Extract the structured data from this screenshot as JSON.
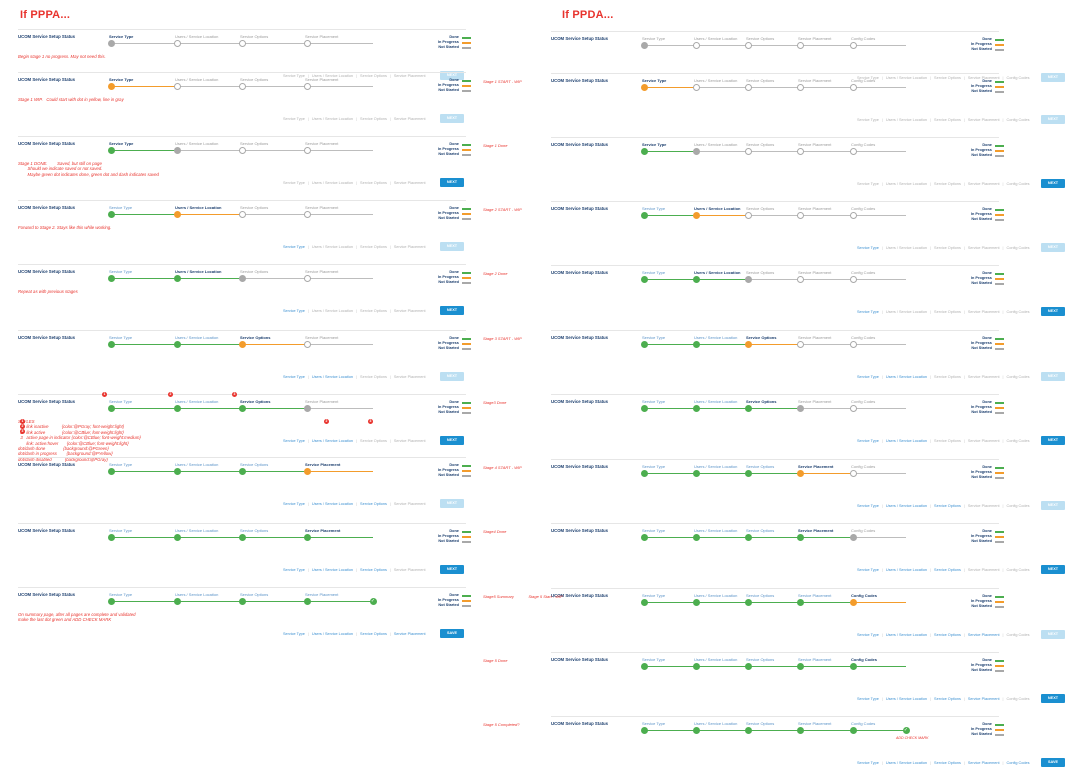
{
  "titles": {
    "left": "If PPPA...",
    "right": "If PPDA..."
  },
  "row_title": "UCOM Service Setup Status",
  "legend": {
    "done": "Done",
    "in_progress": "In Progress",
    "not_started": "Not Started"
  },
  "colors": {
    "done": "#4cae4f",
    "in_progress": "#f39c2c",
    "not_started": "#a9a9a9",
    "accent": "#1a8fd0",
    "note": "#e8332d"
  },
  "buttons": {
    "next": "NEXT",
    "save": "SAVE"
  },
  "left": {
    "stages": [
      "Service Type",
      "Users / Service Location",
      "Service Options",
      "Service Placement"
    ],
    "rows": [
      {
        "labels": [
          "active",
          "dim",
          "dim",
          "dim"
        ],
        "dots": [
          "gray",
          "ring",
          "ring",
          "ring"
        ],
        "segs": [
          "",
          "",
          "",
          ""
        ],
        "crumbs": [
          "dim",
          "dim",
          "dim",
          "dim"
        ],
        "btn": "disabled",
        "btnText": "next",
        "note": "Begin stage 1 no progress. May not need this."
      },
      {
        "labels": [
          "active",
          "dim",
          "dim",
          "dim"
        ],
        "dots": [
          "prog",
          "ring",
          "ring",
          "ring"
        ],
        "segs": [
          "prog",
          "",
          "",
          ""
        ],
        "crumbs": [
          "dim",
          "dim",
          "dim",
          "dim"
        ],
        "btn": "disabled",
        "btnText": "next",
        "note": "Stage 1 WIP.   Could start with dot in yellow, line in gray"
      },
      {
        "labels": [
          "active",
          "dim",
          "dim",
          "dim"
        ],
        "dots": [
          "done",
          "gray",
          "ring",
          "ring"
        ],
        "segs": [
          "done",
          "",
          "",
          ""
        ],
        "crumbs": [
          "dim",
          "dim",
          "dim",
          "dim"
        ],
        "btn": "enabled",
        "btnText": "next",
        "note": "Stage 1 DONE.        Saved, but still on page\n        Should we indicate saved or not saved.\n        Maybe green dot indicates done, green dot and dash indicates saved"
      },
      {
        "labels": [
          "done",
          "active",
          "dim",
          "dim"
        ],
        "dots": [
          "done",
          "prog",
          "ring",
          "ring"
        ],
        "segs": [
          "done",
          "prog",
          "",
          ""
        ],
        "crumbs": [
          "done",
          "dim",
          "dim",
          "dim"
        ],
        "btn": "disabled",
        "btnText": "next",
        "note": "Forward to Stage 2. Stays like this while working."
      },
      {
        "labels": [
          "done",
          "active",
          "dim",
          "dim"
        ],
        "dots": [
          "done",
          "done",
          "gray",
          "ring"
        ],
        "segs": [
          "done",
          "done",
          "",
          ""
        ],
        "crumbs": [
          "done",
          "dim",
          "dim",
          "dim"
        ],
        "btn": "enabled",
        "btnText": "next",
        "note": "Repeat as with previous stages"
      },
      {
        "labels": [
          "done",
          "done",
          "active",
          "dim"
        ],
        "dots": [
          "done",
          "done",
          "prog",
          "ring"
        ],
        "segs": [
          "done",
          "done",
          "prog",
          ""
        ],
        "crumbs": [
          "done",
          "done",
          "dim",
          "dim"
        ],
        "btn": "disabled",
        "btnText": "next",
        "note": ""
      },
      {
        "labels": [
          "done",
          "done",
          "active",
          "dim"
        ],
        "dots": [
          "done",
          "done",
          "done",
          "gray"
        ],
        "segs": [
          "done",
          "done",
          "done",
          ""
        ],
        "crumbs": [
          "done",
          "done",
          "dim",
          "dim"
        ],
        "btn": "enabled",
        "btnText": "next",
        "note": "STYLES\n  1   link inactive           {color:@PGray; font-weight:light}\n  2   link active              {color:@CBlue; font-weight:light}\n  3   active page in indicator {color:@CBlue; font-weight:medium}\n       link: active:hover       {color:@CBlue; font-weight:light}\ndot/dash done               {background:@PGreen}\ndot/dash in progress        {background:@PYellow}\ndot/dash disabled           {background:@PGray}"
      },
      {
        "labels": [
          "done",
          "done",
          "done",
          "active"
        ],
        "dots": [
          "done",
          "done",
          "done",
          "prog"
        ],
        "segs": [
          "done",
          "done",
          "done",
          "prog"
        ],
        "crumbs": [
          "done",
          "done",
          "done",
          "dim"
        ],
        "btn": "disabled",
        "btnText": "next",
        "note": ""
      },
      {
        "labels": [
          "done",
          "done",
          "done",
          "active"
        ],
        "dots": [
          "done",
          "done",
          "done",
          "done"
        ],
        "segs": [
          "done",
          "done",
          "done",
          "done"
        ],
        "crumbs": [
          "done",
          "done",
          "done",
          "dim"
        ],
        "btn": "enabled",
        "btnText": "next",
        "note": ""
      },
      {
        "labels": [
          "done",
          "done",
          "done",
          "done"
        ],
        "dots": [
          "done",
          "done",
          "done",
          "done",
          "check"
        ],
        "segs": [
          "done",
          "done",
          "done",
          "done"
        ],
        "crumbs": [
          "done",
          "done",
          "done",
          "done"
        ],
        "btn": "enabled",
        "btnText": "save",
        "note": "On summary page, after all pages are complete and validated\nmake the last dot green and ADD CHECK MARK"
      }
    ]
  },
  "right": {
    "stages": [
      "Service Type",
      "Users / Service Location",
      "Service Options",
      "Service Placement",
      "Config Codes"
    ],
    "rows": [
      {
        "side": "",
        "labels": [
          "dim",
          "dim",
          "dim",
          "dim",
          "dim"
        ],
        "dots": [
          "gray",
          "ring",
          "ring",
          "ring",
          "ring"
        ],
        "segs": [
          "",
          "",
          "",
          "",
          ""
        ],
        "crumbs": [
          "dim",
          "dim",
          "dim",
          "dim",
          "dim"
        ],
        "btn": "disabled",
        "btnText": "next"
      },
      {
        "side": "Stage 1 START - WIP",
        "labels": [
          "active",
          "dim",
          "dim",
          "dim",
          "dim"
        ],
        "dots": [
          "prog",
          "ring",
          "ring",
          "ring",
          "ring"
        ],
        "segs": [
          "prog",
          "",
          "",
          "",
          ""
        ],
        "crumbs": [
          "dim",
          "dim",
          "dim",
          "dim",
          "dim"
        ],
        "btn": "disabled",
        "btnText": "next"
      },
      {
        "side": "Stage 1 Done",
        "labels": [
          "active",
          "dim",
          "dim",
          "dim",
          "dim"
        ],
        "dots": [
          "done",
          "gray",
          "ring",
          "ring",
          "ring"
        ],
        "segs": [
          "done",
          "",
          "",
          "",
          ""
        ],
        "crumbs": [
          "dim",
          "dim",
          "dim",
          "dim",
          "dim"
        ],
        "btn": "enabled",
        "btnText": "next"
      },
      {
        "side": "Stage 2 START - WIP",
        "labels": [
          "done",
          "active",
          "dim",
          "dim",
          "dim"
        ],
        "dots": [
          "done",
          "prog",
          "ring",
          "ring",
          "ring"
        ],
        "segs": [
          "done",
          "prog",
          "",
          "",
          ""
        ],
        "crumbs": [
          "done",
          "dim",
          "dim",
          "dim",
          "dim"
        ],
        "btn": "disabled",
        "btnText": "next"
      },
      {
        "side": "Stage 2 Done",
        "labels": [
          "done",
          "active",
          "dim",
          "dim",
          "dim"
        ],
        "dots": [
          "done",
          "done",
          "gray",
          "ring",
          "ring"
        ],
        "segs": [
          "done",
          "done",
          "",
          "",
          ""
        ],
        "crumbs": [
          "done",
          "dim",
          "dim",
          "dim",
          "dim"
        ],
        "btn": "enabled",
        "btnText": "next"
      },
      {
        "side": "Stage 3 START - WIP",
        "labels": [
          "done",
          "done",
          "active",
          "dim",
          "dim"
        ],
        "dots": [
          "done",
          "done",
          "prog",
          "ring",
          "ring"
        ],
        "segs": [
          "done",
          "done",
          "prog",
          "",
          ""
        ],
        "crumbs": [
          "done",
          "done",
          "dim",
          "dim",
          "dim"
        ],
        "btn": "disabled",
        "btnText": "next"
      },
      {
        "side": "Stage3 Done",
        "labels": [
          "done",
          "done",
          "active",
          "dim",
          "dim"
        ],
        "dots": [
          "done",
          "done",
          "done",
          "gray",
          "ring"
        ],
        "segs": [
          "done",
          "done",
          "done",
          "",
          ""
        ],
        "crumbs": [
          "done",
          "done",
          "dim",
          "dim",
          "dim"
        ],
        "btn": "enabled",
        "btnText": "next"
      },
      {
        "side": "Stage 4 START - WIP",
        "labels": [
          "done",
          "done",
          "done",
          "active",
          "dim"
        ],
        "dots": [
          "done",
          "done",
          "done",
          "prog",
          "ring"
        ],
        "segs": [
          "done",
          "done",
          "done",
          "prog",
          ""
        ],
        "crumbs": [
          "done",
          "done",
          "done",
          "dim",
          "dim"
        ],
        "btn": "disabled",
        "btnText": "next"
      },
      {
        "side": "Stage4 Done",
        "labels": [
          "done",
          "done",
          "done",
          "active",
          "dim"
        ],
        "dots": [
          "done",
          "done",
          "done",
          "done",
          "gray"
        ],
        "segs": [
          "done",
          "done",
          "done",
          "done",
          ""
        ],
        "crumbs": [
          "done",
          "done",
          "done",
          "dim",
          "dim"
        ],
        "btn": "enabled",
        "btnText": "next"
      },
      {
        "side": "Stage5 Summary             Stage 5 Start - WIP",
        "labels": [
          "done",
          "done",
          "done",
          "done",
          "active"
        ],
        "dots": [
          "done",
          "done",
          "done",
          "done",
          "prog"
        ],
        "segs": [
          "done",
          "done",
          "done",
          "done",
          "prog"
        ],
        "crumbs": [
          "done",
          "done",
          "done",
          "done",
          "dim"
        ],
        "btn": "disabled",
        "btnText": "next"
      },
      {
        "side": "Stage 5 Done",
        "labels": [
          "done",
          "done",
          "done",
          "done",
          "active"
        ],
        "dots": [
          "done",
          "done",
          "done",
          "done",
          "done"
        ],
        "segs": [
          "done",
          "done",
          "done",
          "done",
          "done"
        ],
        "crumbs": [
          "done",
          "done",
          "done",
          "done",
          "dim"
        ],
        "btn": "enabled",
        "btnText": "next"
      },
      {
        "side": "Stage 5 Completed?",
        "labels": [
          "done",
          "done",
          "done",
          "done",
          "done"
        ],
        "dots": [
          "done",
          "done",
          "done",
          "done",
          "done",
          "check"
        ],
        "segs": [
          "done",
          "done",
          "done",
          "done",
          "done"
        ],
        "crumbs": [
          "done",
          "done",
          "done",
          "done",
          "done"
        ],
        "btn": "enabled",
        "btnText": "save",
        "under": "ADD CHECK MARK"
      }
    ]
  }
}
